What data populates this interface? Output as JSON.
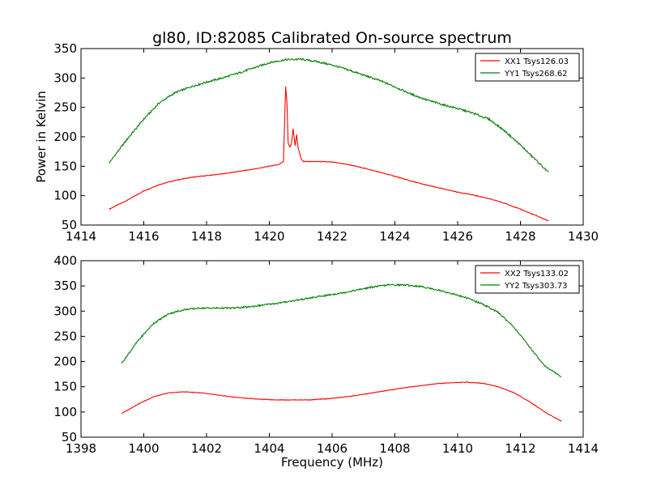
{
  "title": "gl80, ID:82085 Calibrated On-source spectrum",
  "chart_data": [
    {
      "type": "line",
      "title": "gl80, ID:82085 Calibrated On-source spectrum",
      "xlabel": "",
      "ylabel": "Power in Kelvin",
      "xlim": [
        1414,
        1430
      ],
      "ylim": [
        50,
        350
      ],
      "xticks": [
        1414,
        1416,
        1418,
        1420,
        1422,
        1424,
        1426,
        1428,
        1430
      ],
      "yticks": [
        50,
        100,
        150,
        200,
        250,
        300,
        350
      ],
      "xtick_labels": [
        "1414",
        "1416",
        "1418",
        "1420",
        "1422",
        "1424",
        "1426",
        "1428",
        "1430"
      ],
      "ytick_labels": [
        "50",
        "100",
        "150",
        "200",
        "250",
        "300",
        "350"
      ],
      "grid": false,
      "legend_position": "top-right",
      "series": [
        {
          "name": "XX1 Tsys126.03",
          "color": "#ff0000",
          "x": [
            1414.9,
            1415.5,
            1416.0,
            1416.5,
            1417.0,
            1417.5,
            1418.0,
            1418.5,
            1419.0,
            1419.5,
            1420.0,
            1420.3,
            1420.45,
            1420.52,
            1420.56,
            1420.6,
            1420.65,
            1420.7,
            1420.76,
            1420.82,
            1420.87,
            1420.92,
            1420.97,
            1421.02,
            1421.1,
            1421.3,
            1421.6,
            1422.0,
            1422.5,
            1423.0,
            1423.5,
            1424.0,
            1424.5,
            1425.0,
            1425.5,
            1426.0,
            1426.5,
            1427.0,
            1427.5,
            1428.0,
            1428.5,
            1428.9
          ],
          "y": [
            77,
            93,
            108,
            119,
            126,
            131,
            134,
            137,
            141,
            145,
            150,
            153,
            158,
            285,
            260,
            190,
            183,
            188,
            214,
            185,
            204,
            180,
            172,
            162,
            158,
            158,
            158,
            157,
            153,
            147,
            140,
            133,
            125,
            118,
            112,
            106,
            101,
            95,
            87,
            77,
            66,
            57
          ]
        },
        {
          "name": "YY1 Tsys268.62",
          "color": "#008000",
          "x": [
            1414.9,
            1415.5,
            1416.0,
            1416.5,
            1417.0,
            1417.5,
            1418.0,
            1418.5,
            1419.0,
            1419.5,
            1420.0,
            1420.5,
            1421.0,
            1421.5,
            1422.0,
            1422.5,
            1423.0,
            1423.5,
            1424.0,
            1424.5,
            1425.0,
            1425.5,
            1426.0,
            1426.5,
            1427.0,
            1427.5,
            1428.0,
            1428.5,
            1428.9
          ],
          "y": [
            156,
            198,
            230,
            258,
            275,
            285,
            293,
            300,
            308,
            317,
            326,
            331,
            332,
            328,
            322,
            314,
            305,
            296,
            285,
            273,
            263,
            255,
            248,
            240,
            230,
            210,
            186,
            160,
            139
          ]
        }
      ]
    },
    {
      "type": "line",
      "title": "",
      "xlabel": "Frequency (MHz)",
      "ylabel": "",
      "xlim": [
        1398,
        1414
      ],
      "ylim": [
        50,
        400
      ],
      "xticks": [
        1398,
        1400,
        1402,
        1404,
        1406,
        1408,
        1410,
        1412,
        1414
      ],
      "yticks": [
        50,
        100,
        150,
        200,
        250,
        300,
        350,
        400
      ],
      "xtick_labels": [
        "1398",
        "1400",
        "1402",
        "1404",
        "1406",
        "1408",
        "1410",
        "1412",
        "1414"
      ],
      "ytick_labels": [
        "50",
        "100",
        "150",
        "200",
        "250",
        "300",
        "350",
        "400"
      ],
      "grid": false,
      "legend_position": "top-right",
      "series": [
        {
          "name": "XX2 Tsys133.02",
          "color": "#ff0000",
          "x": [
            1399.3,
            1399.8,
            1400.3,
            1400.8,
            1401.3,
            1401.8,
            1402.3,
            1402.8,
            1403.3,
            1403.8,
            1404.3,
            1404.8,
            1405.3,
            1405.8,
            1406.3,
            1406.8,
            1407.3,
            1407.8,
            1408.3,
            1408.8,
            1409.3,
            1409.8,
            1410.3,
            1410.8,
            1411.3,
            1411.8,
            1412.3,
            1412.8,
            1413.3
          ],
          "y": [
            97,
            115,
            130,
            138,
            140,
            138,
            134,
            130,
            127,
            125,
            124,
            124,
            124,
            126,
            129,
            133,
            138,
            143,
            148,
            152,
            156,
            158,
            159,
            157,
            150,
            138,
            120,
            99,
            82
          ]
        },
        {
          "name": "YY2 Tsys303.73",
          "color": "#008000",
          "x": [
            1399.3,
            1399.8,
            1400.3,
            1400.8,
            1401.3,
            1401.8,
            1402.3,
            1402.8,
            1403.3,
            1403.8,
            1404.3,
            1404.8,
            1405.3,
            1405.8,
            1406.3,
            1406.8,
            1407.3,
            1407.8,
            1408.3,
            1408.8,
            1409.3,
            1409.8,
            1410.3,
            1410.8,
            1411.3,
            1411.8,
            1412.3,
            1412.8,
            1413.3
          ],
          "y": [
            197,
            240,
            275,
            295,
            303,
            306,
            306,
            306,
            308,
            312,
            316,
            321,
            326,
            331,
            336,
            342,
            348,
            352,
            352,
            349,
            343,
            335,
            326,
            314,
            297,
            268,
            228,
            190,
            170
          ]
        }
      ]
    }
  ]
}
